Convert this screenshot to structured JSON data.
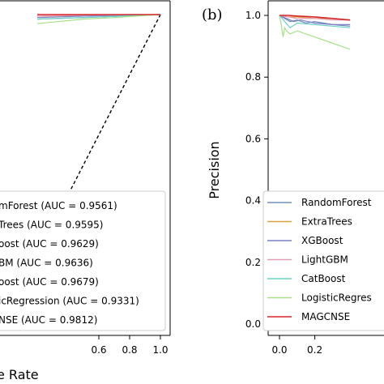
{
  "chart_data": [
    {
      "type": "line",
      "panel_label": "",
      "xlabel": "e Rate",
      "ylabel": "",
      "xlim": [
        0,
        1.05
      ],
      "ylim": [
        -0.05,
        1.05
      ],
      "xticks": [
        "0.6",
        "0.8",
        "1.0"
      ],
      "xtick_values": [
        0.6,
        0.8,
        1.0
      ],
      "yticks": [],
      "grid": false,
      "legend_location": "lower-right",
      "reference_line": {
        "x": [
          0,
          1
        ],
        "y": [
          0,
          1
        ],
        "style": "dashed",
        "color": "#000000"
      },
      "series": [
        {
          "name": "mForest (AUC = 0.9561)",
          "color": "#6f8fbf",
          "x": [
            0.2,
            0.5,
            1.0
          ],
          "y": [
            0.985,
            0.99,
            1.0
          ]
        },
        {
          "name": "Trees (AUC = 0.9595)",
          "color": "#d9a441",
          "x": [
            0.2,
            0.5,
            1.0
          ],
          "y": [
            0.995,
            0.997,
            1.0
          ]
        },
        {
          "name": "oost (AUC = 0.9629)",
          "color": "#7a7fc4",
          "x": [
            0.2,
            0.5,
            1.0
          ],
          "y": [
            0.99,
            0.995,
            1.0
          ]
        },
        {
          "name": "BM (AUC = 0.9636)",
          "color": "#e59ab8",
          "x": [
            0.2,
            0.5,
            1.0
          ],
          "y": [
            0.995,
            0.998,
            1.0
          ]
        },
        {
          "name": "oost (AUC = 0.9679)",
          "color": "#6fd1c5",
          "x": [
            0.2,
            0.5,
            1.0
          ],
          "y": [
            0.985,
            0.99,
            1.0
          ]
        },
        {
          "name": "icRegression (AUC = 0.9331)",
          "color": "#a8e08a",
          "x": [
            0.2,
            0.3,
            0.4,
            0.5,
            0.7,
            1.0
          ],
          "y": [
            0.97,
            0.975,
            0.98,
            0.985,
            0.99,
            1.0
          ]
        },
        {
          "name": "NSE (AUC = 0.9812)",
          "color": "#d62728",
          "x": [
            0.2,
            1.0
          ],
          "y": [
            1.0,
            1.0
          ]
        }
      ]
    },
    {
      "type": "line",
      "panel_label": "(b)",
      "xlabel": "",
      "ylabel": "Precision",
      "xlim": [
        -0.05,
        1.05
      ],
      "ylim": [
        -0.05,
        1.05
      ],
      "xticks": [
        "0.0",
        "0.2"
      ],
      "xtick_values": [
        0.0,
        0.2
      ],
      "yticks": [
        "0.0",
        "0.2",
        "0.4",
        "0.6",
        "0.8",
        "1.0"
      ],
      "ytick_values": [
        0.0,
        0.2,
        0.4,
        0.6,
        0.8,
        1.0
      ],
      "grid": false,
      "legend_location": "lower-left",
      "series": [
        {
          "name": "RandomForest",
          "color": "#6f8fbf",
          "x": [
            0.0,
            0.03,
            0.06,
            0.1,
            0.15,
            0.2,
            0.3,
            0.4
          ],
          "y": [
            1.0,
            0.99,
            0.98,
            0.985,
            0.975,
            0.98,
            0.97,
            0.965
          ]
        },
        {
          "name": "ExtraTrees",
          "color": "#d9a441",
          "x": [
            0.0,
            0.05,
            0.1,
            0.2,
            0.3,
            0.4
          ],
          "y": [
            1.0,
            0.995,
            0.995,
            0.99,
            0.99,
            0.985
          ]
        },
        {
          "name": "XGBoost",
          "color": "#7a7fc4",
          "x": [
            0.0,
            0.04,
            0.08,
            0.12,
            0.2,
            0.3,
            0.4
          ],
          "y": [
            1.0,
            0.99,
            0.98,
            0.985,
            0.975,
            0.97,
            0.97
          ]
        },
        {
          "name": "LightGBM",
          "color": "#e59ab8",
          "x": [
            0.0,
            0.05,
            0.1,
            0.2,
            0.3,
            0.4
          ],
          "y": [
            1.0,
            0.995,
            0.99,
            0.99,
            0.985,
            0.985
          ]
        },
        {
          "name": "CatBoost",
          "color": "#6fd1c5",
          "x": [
            0.0,
            0.03,
            0.06,
            0.1,
            0.2,
            0.3,
            0.4
          ],
          "y": [
            1.0,
            0.98,
            0.96,
            0.975,
            0.97,
            0.965,
            0.96
          ]
        },
        {
          "name": "LogisticRegres",
          "color": "#a8e08a",
          "x": [
            0.0,
            0.01,
            0.02,
            0.03,
            0.04,
            0.06,
            0.1,
            0.15,
            0.2,
            0.25,
            0.3,
            0.35,
            0.4
          ],
          "y": [
            1.0,
            0.97,
            0.93,
            0.96,
            0.95,
            0.94,
            0.95,
            0.94,
            0.93,
            0.92,
            0.91,
            0.9,
            0.89
          ]
        },
        {
          "name": "MAGCNSE",
          "color": "#d62728",
          "x": [
            0.0,
            0.05,
            0.1,
            0.2,
            0.3,
            0.4
          ],
          "y": [
            1.0,
            1.0,
            0.998,
            0.995,
            0.99,
            0.985
          ]
        }
      ]
    }
  ]
}
